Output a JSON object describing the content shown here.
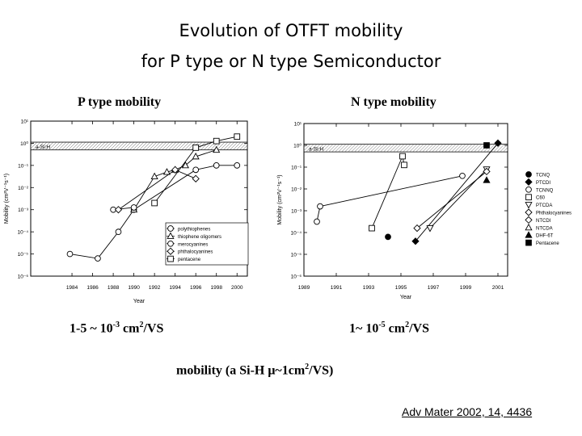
{
  "title_line1": "Evolution of OTFT mobility",
  "title_line2": "for P type or N type Semiconductor",
  "p_subtitle": "P type mobility",
  "n_subtitle": "N type mobility",
  "p_value": {
    "prefix": "1-5 ~ 10",
    "exp": "-3",
    "suffix": " cm",
    "unit_exp": "2",
    "unit": "/VS"
  },
  "n_value": {
    "prefix": "1~ 10",
    "exp": "-5",
    "suffix": " cm",
    "unit_exp": "2",
    "unit": "/VS"
  },
  "note": {
    "prefix": "mobility (a Si-H μ~1cm",
    "exp": "2",
    "suffix": "/VS)"
  },
  "citation": "Adv Mater 2002, 14, 4436",
  "chart_data": [
    {
      "type": "scatter",
      "title": "P type mobility",
      "xlabel": "Year",
      "ylabel": "Mobility (cm²V⁻¹s⁻¹)",
      "xlim": [
        1980,
        2001
      ],
      "ylim_log10": [
        -6,
        1
      ],
      "xticks": [
        1984,
        1986,
        1988,
        1990,
        1992,
        1994,
        1996,
        1998,
        2000
      ],
      "xtick_labels": [
        "1984",
        "1986",
        "1988",
        "1990",
        "1992",
        "1994",
        "1996",
        "1998",
        "2000"
      ],
      "yticks_log10": [
        -6,
        -5,
        -4,
        -3,
        -2,
        -1,
        0,
        1
      ],
      "ytick_labels": [
        "10⁻⁶",
        "10⁻⁵",
        "10⁻⁴",
        "10⁻³",
        "10⁻²",
        "10⁻¹",
        "10⁰",
        "10¹"
      ],
      "band_label": "a-Si:H",
      "legend": [
        "polythiophenes",
        "thiophene oligomers",
        "merocyanines",
        "phthalocyanines",
        "pentacene"
      ],
      "series": [
        {
          "name": "polythiophenes",
          "marker": "circle",
          "points": [
            [
              1983.8,
              -5.0
            ],
            [
              1986.5,
              -5.2
            ],
            [
              1988.5,
              -4.0
            ],
            [
              1990.0,
              -3.0
            ],
            [
              1996.0,
              -1.2
            ],
            [
              1998.0,
              -1.0
            ],
            [
              2000.0,
              -1.0
            ]
          ]
        },
        {
          "name": "thiophene oligomers",
          "marker": "triangle",
          "points": [
            [
              1990.0,
              -3.0
            ],
            [
              1992.0,
              -1.5
            ],
            [
              1993.2,
              -1.3
            ],
            [
              1994.0,
              -1.2
            ],
            [
              1995.0,
              -1.0
            ],
            [
              1996.0,
              -0.6
            ],
            [
              1998.0,
              -0.3
            ]
          ]
        },
        {
          "name": "merocyanines",
          "marker": "circle",
          "points": [
            [
              1988.0,
              -3.0
            ],
            [
              1990.0,
              -2.9
            ]
          ]
        },
        {
          "name": "phthalocyanines",
          "marker": "diamond",
          "points": [
            [
              1988.5,
              -3.0
            ],
            [
              1994.0,
              -1.2
            ],
            [
              1996.0,
              -1.6
            ]
          ]
        },
        {
          "name": "pentacene",
          "marker": "square",
          "points": [
            [
              1992.0,
              -2.7
            ],
            [
              1996.0,
              -0.2
            ],
            [
              1998.0,
              0.1
            ],
            [
              2000.0,
              0.3
            ]
          ]
        }
      ]
    },
    {
      "type": "scatter",
      "title": "N type mobility",
      "xlabel": "Year",
      "ylabel": "Mobility (cm²V⁻¹s⁻¹)",
      "xlim": [
        1989,
        2001.6
      ],
      "ylim_log10": [
        -6,
        1
      ],
      "xticks": [
        1989,
        1991,
        1993,
        1995,
        1997,
        1999,
        2001
      ],
      "xtick_labels": [
        "1989",
        "1991",
        "1993",
        "1995",
        "1997",
        "1999",
        "2001"
      ],
      "yticks_log10": [
        -6,
        -5,
        -4,
        -3,
        -2,
        -1,
        0,
        1
      ],
      "ytick_labels": [
        "10⁻⁶",
        "10⁻⁵",
        "10⁻⁴",
        "10⁻³",
        "10⁻²",
        "10⁻¹",
        "10⁰",
        "10¹"
      ],
      "band_label": "a-Si:H",
      "legend": [
        "TCNQ",
        "PTCDI",
        "TCNNQ",
        "C60",
        "PTCDA",
        "Phthalocyanines",
        "NTCDI",
        "NTCDA",
        "DHF-6T",
        "Pentacene"
      ],
      "series": [
        {
          "name": "TCNQ",
          "marker": "filled-circle",
          "points": [
            [
              1994.2,
              -4.2
            ]
          ]
        },
        {
          "name": "PTCDI",
          "marker": "filled-diamond",
          "points": [
            [
              1995.9,
              -4.4
            ],
            [
              2001.0,
              0.1
            ]
          ]
        },
        {
          "name": "TCNNQ",
          "marker": "circle",
          "points": [
            [
              1989.8,
              -3.5
            ],
            [
              1990.0,
              -2.8
            ],
            [
              1998.8,
              -1.4
            ]
          ]
        },
        {
          "name": "C60",
          "marker": "square",
          "points": [
            [
              1993.2,
              -3.8
            ],
            [
              1995.1,
              -0.5
            ],
            [
              1995.2,
              -0.9
            ]
          ]
        },
        {
          "name": "PTCDA",
          "marker": "triangle-down",
          "points": [
            [
              1996.8,
              -3.8
            ],
            [
              2000.3,
              -1.1
            ]
          ]
        },
        {
          "name": "Phthalocyanines",
          "marker": "diamond",
          "points": [
            [
              1996.0,
              -3.8
            ],
            [
              2000.3,
              -1.2
            ]
          ]
        },
        {
          "name": "DHF-6T",
          "marker": "filled-triangle",
          "points": [
            [
              2000.3,
              -1.6
            ]
          ]
        },
        {
          "name": "Pentacene",
          "marker": "filled-square",
          "points": [
            [
              2000.3,
              0.0
            ]
          ]
        }
      ]
    }
  ]
}
